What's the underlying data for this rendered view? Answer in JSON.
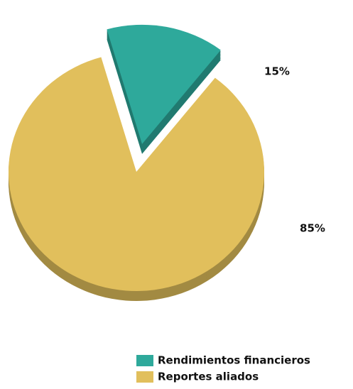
{
  "chart_data": {
    "type": "pie",
    "categories": [
      "Rendimientos financieros",
      "Reportes aliados"
    ],
    "values": [
      15,
      85
    ],
    "value_labels": [
      "15%",
      "85%"
    ],
    "colors": [
      "#2ea99b",
      "#e1bf5c"
    ]
  }
}
